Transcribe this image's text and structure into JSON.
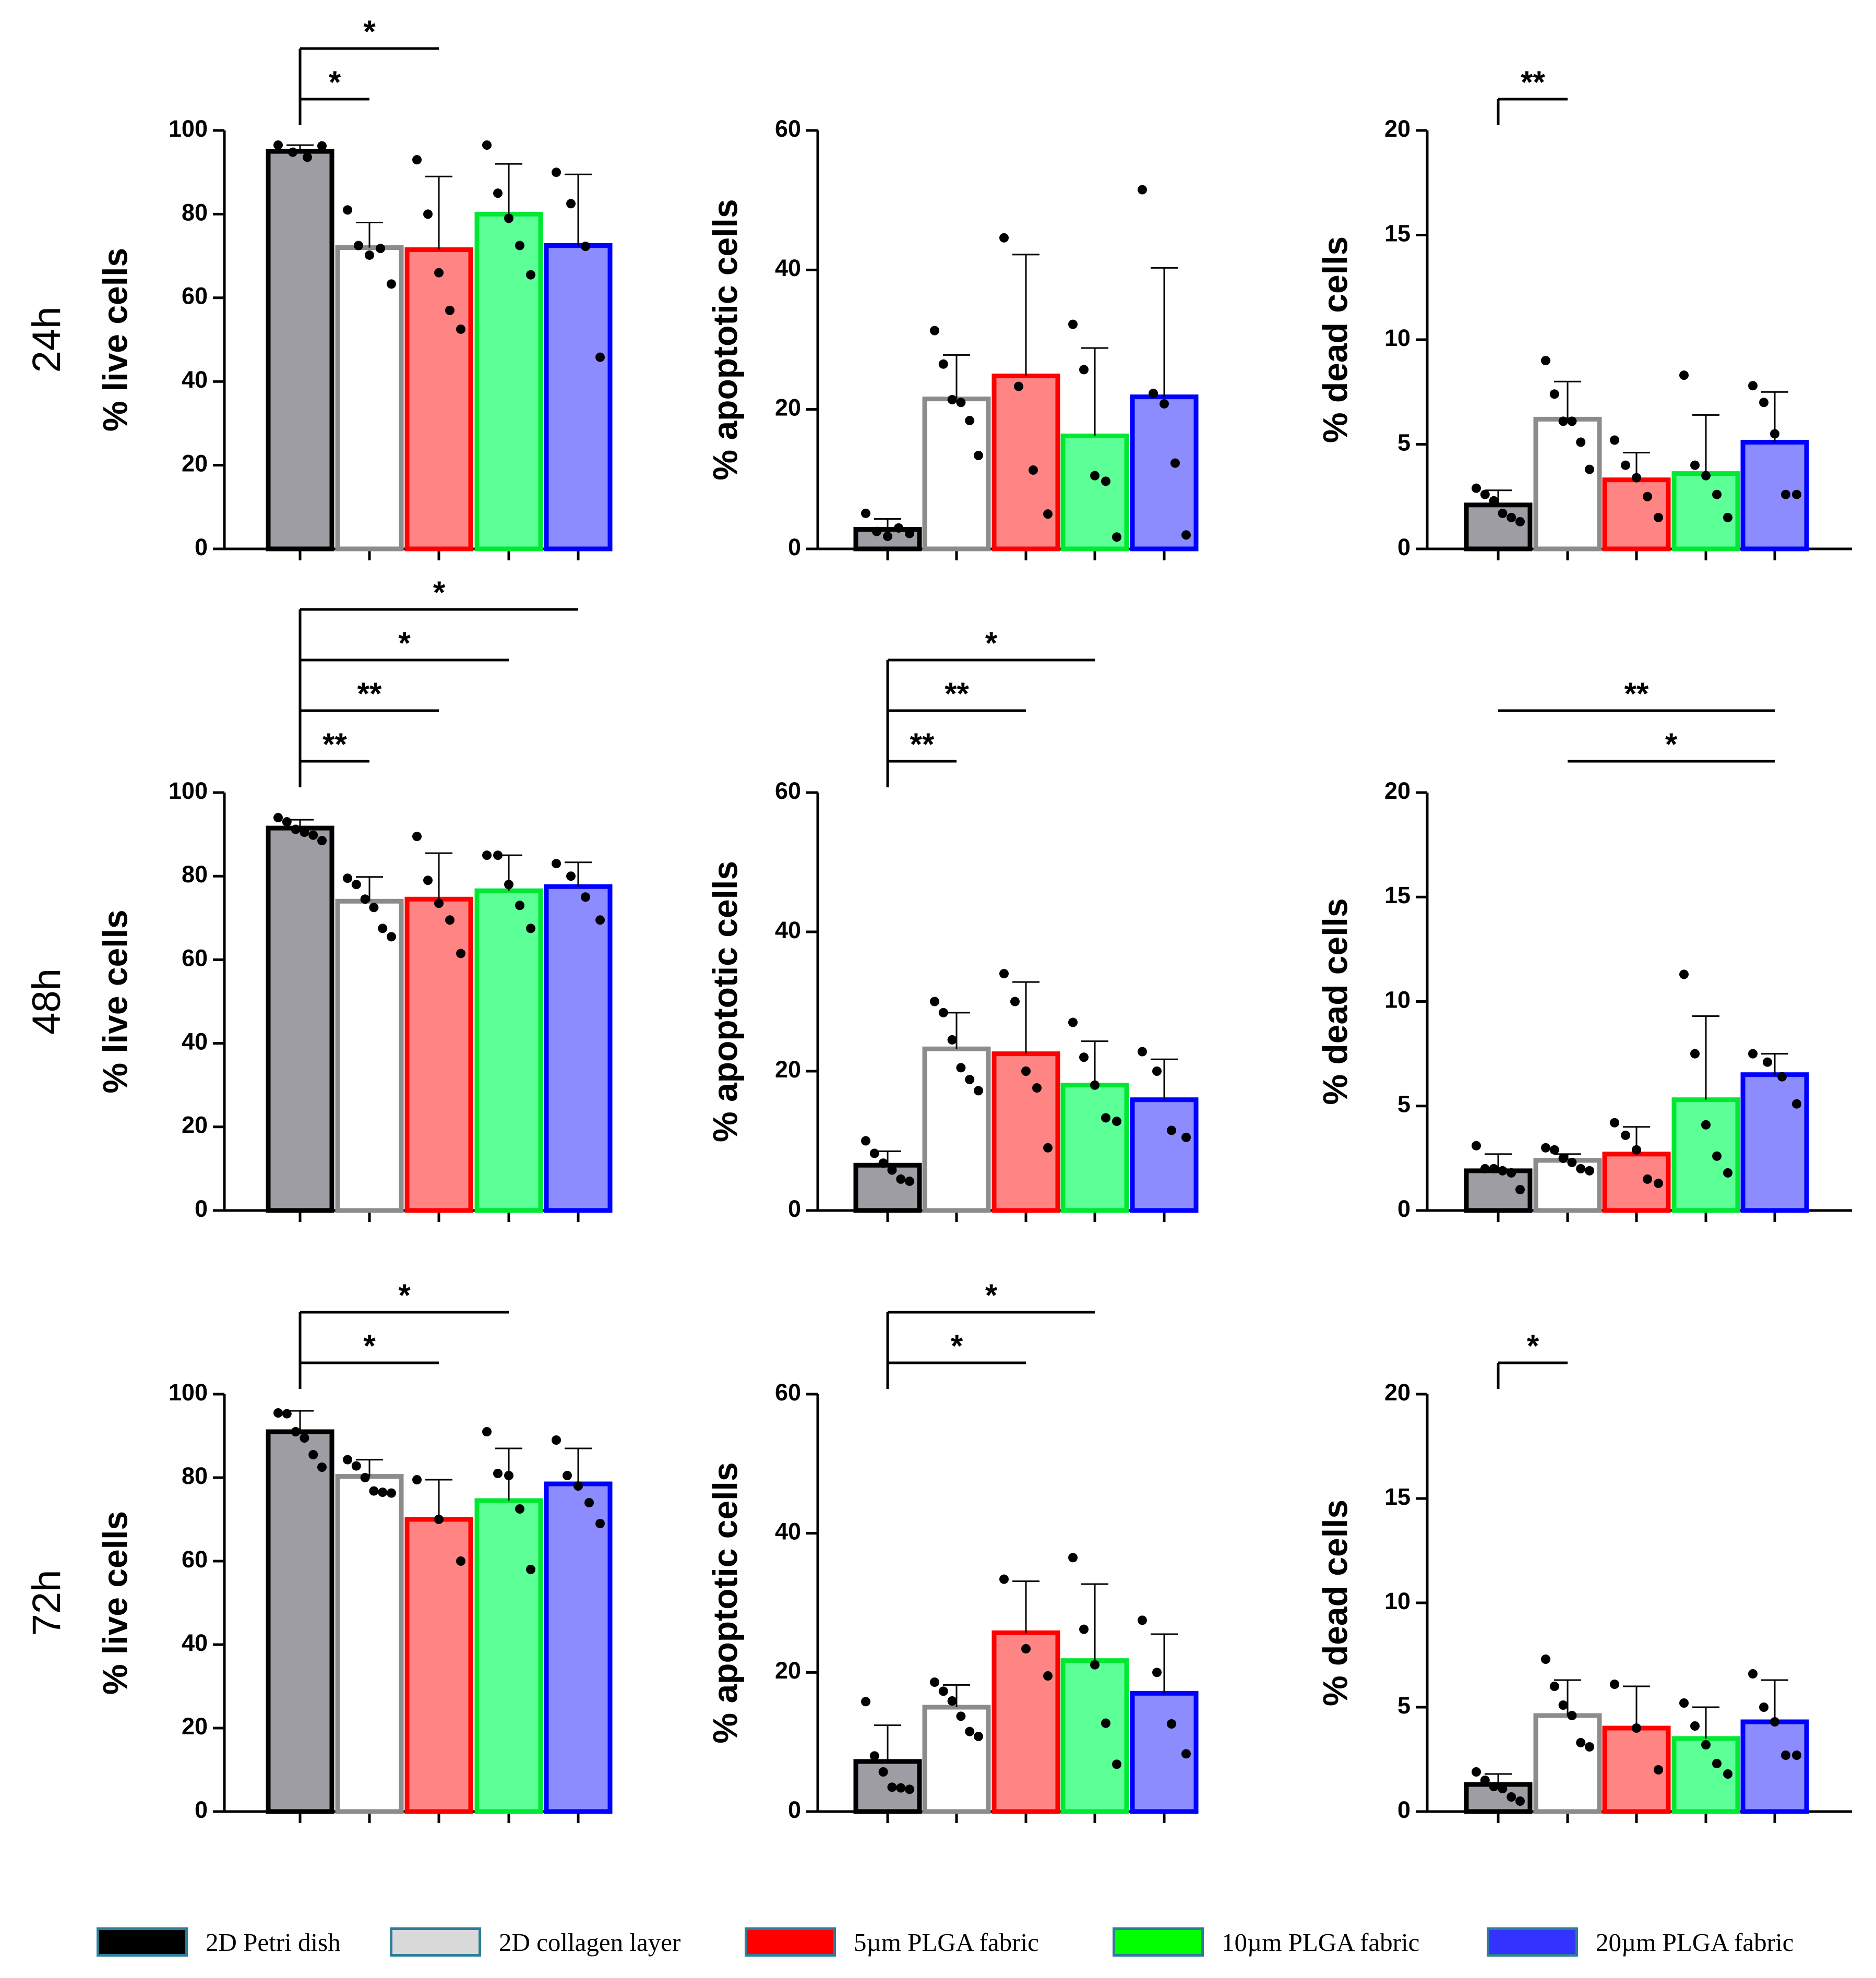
{
  "chart_data": {
    "type": "bar",
    "title": "",
    "groups": [
      "2D Petri dish",
      "2D collagen layer",
      "5µm PLGA fabric",
      "10µm PLGA fabric",
      "20µm PLGA fabric"
    ],
    "colors": {
      "fills": [
        "#9e9da3",
        "#ffffff",
        "#ff8585",
        "#5dff97",
        "#8c8cff"
      ],
      "edges": [
        "#000000",
        "#8c8c8c",
        "#ff0000",
        "#00e832",
        "#0000ff"
      ],
      "legend_fills": [
        "#000000",
        "#d9d9d9",
        "#ff0000",
        "#00ff00",
        "#3333ff"
      ],
      "legend_border": "#2e7d9a"
    },
    "rows": [
      "24h",
      "48h",
      "72h"
    ],
    "panels": [
      {
        "row": 0,
        "col": 0,
        "ylabel": "% live cells",
        "ylim": [
          0,
          100
        ],
        "yticks": [
          0,
          20,
          40,
          60,
          80,
          100
        ],
        "means": [
          95,
          72,
          71.5,
          80,
          72.5
        ],
        "sd": [
          1.5,
          6,
          17.5,
          12,
          17
        ],
        "points": [
          [
            96.5,
            94.8,
            93.6,
            96.3
          ],
          [
            81,
            72.5,
            70.2,
            71.8,
            63.3
          ],
          [
            93,
            80,
            66,
            57,
            52.5
          ],
          [
            96.5,
            85,
            79,
            72.5,
            65.5
          ],
          [
            90,
            82.5,
            72.3,
            45.8
          ]
        ],
        "sig": [
          {
            "from": 0,
            "to": 1,
            "label": "*"
          },
          {
            "from": 0,
            "to": 2,
            "label": "*"
          }
        ]
      },
      {
        "row": 0,
        "col": 1,
        "ylabel": "% apoptotic cells",
        "ylim": [
          0,
          60
        ],
        "yticks": [
          0,
          20,
          40,
          60
        ],
        "means": [
          2.8,
          21.5,
          24.8,
          16.2,
          21.8
        ],
        "sd": [
          1.5,
          6.3,
          17.4,
          12.6,
          18.5
        ],
        "points": [
          [
            5.1,
            2.5,
            1.8,
            3.0,
            2.2
          ],
          [
            31.3,
            26.5,
            21.4,
            21.0,
            18.4,
            13.4
          ],
          [
            44.6,
            23.3,
            11.3,
            5.0
          ],
          [
            32.2,
            25.7,
            10.5,
            9.7,
            1.7
          ],
          [
            51.5,
            22.3,
            20.8,
            12.3,
            2.0
          ]
        ],
        "sig": []
      },
      {
        "row": 0,
        "col": 2,
        "ylabel": "% dead cells",
        "ylim": [
          0,
          20
        ],
        "yticks": [
          0,
          5,
          10,
          15,
          20
        ],
        "means": [
          2.1,
          6.2,
          3.3,
          3.6,
          5.1
        ],
        "sd": [
          0.7,
          1.8,
          1.3,
          2.8,
          2.4
        ],
        "points": [
          [
            2.9,
            2.6,
            2.3,
            1.7,
            1.5,
            1.3
          ],
          [
            9.0,
            7.4,
            6.1,
            6.1,
            5.1,
            3.8
          ],
          [
            5.2,
            4.0,
            3.4,
            2.5,
            1.5
          ],
          [
            8.3,
            4.0,
            3.5,
            2.6,
            1.5
          ],
          [
            7.8,
            7.0,
            5.5,
            2.6,
            2.6
          ]
        ],
        "sig": [
          {
            "from": 0,
            "to": 1,
            "label": "**"
          }
        ]
      },
      {
        "row": 1,
        "col": 0,
        "ylabel": "% live cells",
        "ylim": [
          0,
          100
        ],
        "yticks": [
          0,
          20,
          40,
          60,
          80,
          100
        ],
        "means": [
          91.5,
          74,
          74.5,
          76.5,
          77.5
        ],
        "sd": [
          2,
          5.8,
          11,
          8.5,
          5.8
        ],
        "points": [
          [
            94,
            93,
            91.2,
            90.5,
            89.8,
            88.5
          ],
          [
            79.5,
            78,
            74.5,
            72.5,
            67.5,
            65.5
          ],
          [
            89.5,
            79,
            73.5,
            69.5,
            61.5
          ],
          [
            85,
            85,
            78,
            73,
            67.5
          ],
          [
            83,
            80,
            75,
            69.5
          ]
        ],
        "sig": [
          {
            "from": 0,
            "to": 1,
            "label": "**"
          },
          {
            "from": 0,
            "to": 2,
            "label": "**"
          },
          {
            "from": 0,
            "to": 3,
            "label": "*"
          },
          {
            "from": 0,
            "to": 4,
            "label": "*"
          }
        ]
      },
      {
        "row": 1,
        "col": 1,
        "ylabel": "% apoptotic cells",
        "ylim": [
          0,
          60
        ],
        "yticks": [
          0,
          20,
          40,
          60
        ],
        "means": [
          6.5,
          23.2,
          22.5,
          18,
          15.9
        ],
        "sd": [
          2,
          5.2,
          10.3,
          6.3,
          5.8
        ],
        "points": [
          [
            10.0,
            8.2,
            6.8,
            5.8,
            4.5,
            4.2
          ],
          [
            30.0,
            28.4,
            24.5,
            20.5,
            18.8,
            17.2
          ],
          [
            34.0,
            30.0,
            20.0,
            17.6,
            9.0
          ],
          [
            27.0,
            22.0,
            18.0,
            13.3,
            12.8
          ],
          [
            22.8,
            20.0,
            11.5,
            10.5
          ]
        ],
        "sig": [
          {
            "from": 0,
            "to": 1,
            "label": "**"
          },
          {
            "from": 0,
            "to": 2,
            "label": "**"
          },
          {
            "from": 0,
            "to": 3,
            "label": "*"
          }
        ]
      },
      {
        "row": 1,
        "col": 2,
        "ylabel": "% dead cells",
        "ylim": [
          0,
          20
        ],
        "yticks": [
          0,
          5,
          10,
          15,
          20
        ],
        "means": [
          1.9,
          2.4,
          2.7,
          5.3,
          6.5
        ],
        "sd": [
          0.8,
          0.3,
          1.3,
          4,
          1
        ],
        "points": [
          [
            3.1,
            2.0,
            2.0,
            1.9,
            1.8,
            1.0
          ],
          [
            3.0,
            2.9,
            2.5,
            2.3,
            2.0,
            1.9
          ],
          [
            4.2,
            3.6,
            2.9,
            1.5,
            1.3
          ],
          [
            11.3,
            7.5,
            4.1,
            2.6,
            1.8
          ],
          [
            7.5,
            7.1,
            6.4,
            5.1
          ]
        ],
        "sig": [
          {
            "from": 0,
            "to": 4,
            "label": "**"
          },
          {
            "from": 1,
            "to": 4,
            "label": "*"
          }
        ]
      },
      {
        "row": 2,
        "col": 0,
        "ylabel": "% live cells",
        "ylim": [
          0,
          100
        ],
        "yticks": [
          0,
          20,
          40,
          60,
          80,
          100
        ],
        "means": [
          91,
          80.3,
          70,
          74.5,
          78.5
        ],
        "sd": [
          5,
          4,
          9.5,
          12.5,
          8.5
        ],
        "points": [
          [
            95.5,
            95.3,
            91.0,
            89.5,
            85.5,
            82.5
          ],
          [
            84.3,
            82.8,
            80.0,
            76.8,
            76.5,
            76.3
          ],
          [
            79.5,
            70.0,
            60.0
          ],
          [
            91.0,
            81.0,
            80.5,
            72.5,
            58.0
          ],
          [
            89.0,
            80.5,
            78.0,
            74.0,
            69.0
          ]
        ],
        "sig": [
          {
            "from": 0,
            "to": 2,
            "label": "*"
          },
          {
            "from": 0,
            "to": 3,
            "label": "*"
          }
        ]
      },
      {
        "row": 2,
        "col": 1,
        "ylabel": "% apoptotic cells",
        "ylim": [
          0,
          60
        ],
        "yticks": [
          0,
          20,
          40,
          60
        ],
        "means": [
          7.2,
          15,
          25.7,
          21.7,
          17
        ],
        "sd": [
          5.2,
          3.2,
          7.4,
          11,
          8.5
        ],
        "points": [
          [
            15.8,
            8.0,
            5.7,
            3.5,
            3.4,
            3.2
          ],
          [
            18.6,
            17.3,
            15.9,
            13.7,
            11.5,
            10.8
          ],
          [
            33.4,
            23.4,
            19.5
          ],
          [
            36.5,
            26.2,
            21.1,
            12.7,
            6.8
          ],
          [
            27.5,
            20.0,
            12.6,
            8.3
          ]
        ],
        "sig": [
          {
            "from": 0,
            "to": 2,
            "label": "*"
          },
          {
            "from": 0,
            "to": 3,
            "label": "*"
          }
        ]
      },
      {
        "row": 2,
        "col": 2,
        "ylabel": "% dead cells",
        "ylim": [
          0,
          20
        ],
        "yticks": [
          0,
          5,
          10,
          15,
          20
        ],
        "means": [
          1.3,
          4.6,
          4,
          3.5,
          4.3
        ],
        "sd": [
          0.5,
          1.7,
          2,
          1.5,
          2
        ],
        "points": [
          [
            1.9,
            1.5,
            1.2,
            1.1,
            0.7,
            0.5
          ],
          [
            7.3,
            6.0,
            5.1,
            4.6,
            3.3,
            3.1
          ],
          [
            6.1,
            4.0,
            2.0
          ],
          [
            5.2,
            4.1,
            3.2,
            2.3,
            1.8
          ],
          [
            6.6,
            5.0,
            4.3,
            2.7,
            2.7
          ]
        ],
        "sig": [
          {
            "from": 0,
            "to": 1,
            "label": "*"
          }
        ]
      }
    ]
  }
}
